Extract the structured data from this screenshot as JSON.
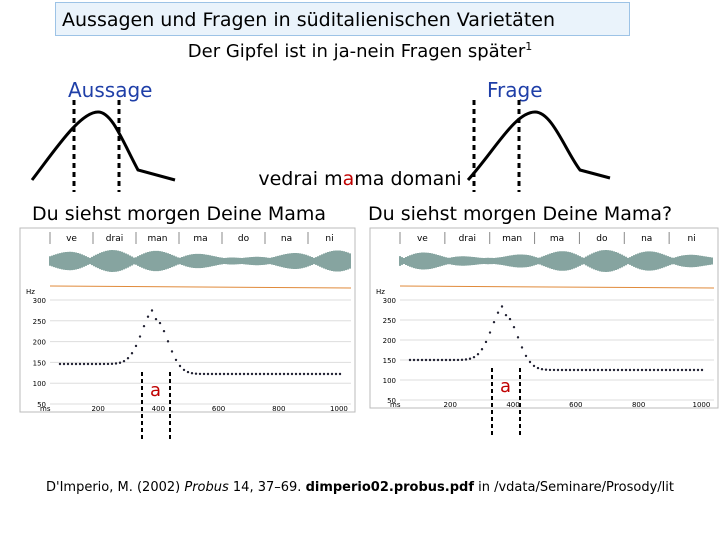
{
  "header": {
    "title": "Aussagen und Fragen in süditalienischen Varietäten",
    "subtitle": {
      "text": "Der Gipfel ist in ja-nein Fragen später",
      "footnote": "1"
    }
  },
  "schema": {
    "left_label": "Aussage",
    "right_label": "Frage"
  },
  "sentence": {
    "parts": [
      "vedrai m",
      "a",
      "ma domani"
    ]
  },
  "panels": [
    {
      "caption": "Du siehst morgen Deine Mama",
      "syllables": [
        "ve",
        "drai",
        "man",
        "ma",
        "do",
        "na",
        "ni"
      ],
      "y_unit": "Hz",
      "yticks": [
        "300",
        "250",
        "200",
        "150",
        "100",
        "50"
      ],
      "x_unit": "ms",
      "xticks": [
        "200",
        "400",
        "600",
        "800",
        "1000"
      ],
      "marker": "a"
    },
    {
      "caption": "Du siehst morgen Deine Mama?",
      "syllables": [
        "ve",
        "drai",
        "man",
        "ma",
        "do",
        "na",
        "ni"
      ],
      "y_unit": "Hz",
      "yticks": [
        "300",
        "250",
        "200",
        "150",
        "100",
        "50"
      ],
      "x_unit": "ms",
      "xticks": [
        "200",
        "400",
        "600",
        "800",
        "1000"
      ],
      "marker": "a"
    }
  ],
  "citation": {
    "author": "D'Imperio, M. (2002) ",
    "journal": "Probus",
    "details": " 14, 37–69. ",
    "file": "dimperio02.probus.pdf",
    "location": " in /vdata/Seminare/Prosody/lit"
  }
}
